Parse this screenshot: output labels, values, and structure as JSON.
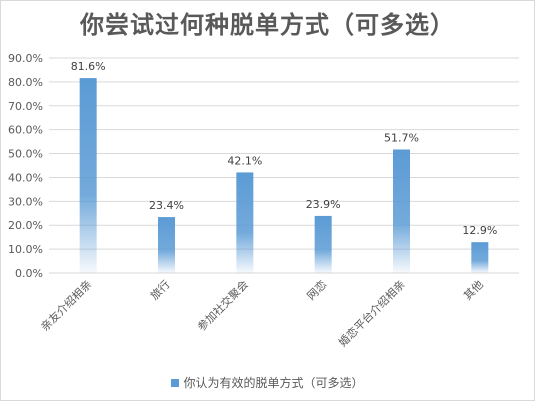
{
  "chart_data": {
    "type": "bar",
    "title": "你尝试过何种脱单方式（可多选）",
    "categories": [
      "亲友介绍相亲",
      "旅行",
      "参加社交聚会",
      "网恋",
      "婚恋平台介绍相亲",
      "其他"
    ],
    "series": [
      {
        "name": "你认为有效的脱单方式（可多选）",
        "values": [
          81.6,
          23.4,
          42.1,
          23.9,
          51.7,
          12.9
        ],
        "labels": [
          "81.6%",
          "23.4%",
          "42.1%",
          "23.9%",
          "51.7%",
          "12.9%"
        ]
      }
    ],
    "yticks": [
      "0.0%",
      "10.0%",
      "20.0%",
      "30.0%",
      "40.0%",
      "50.0%",
      "60.0%",
      "70.0%",
      "80.0%",
      "90.0%"
    ],
    "ylim": [
      0,
      90
    ],
    "grid": true,
    "legend_position": "bottom",
    "bar_color": "#5b9bd5"
  }
}
